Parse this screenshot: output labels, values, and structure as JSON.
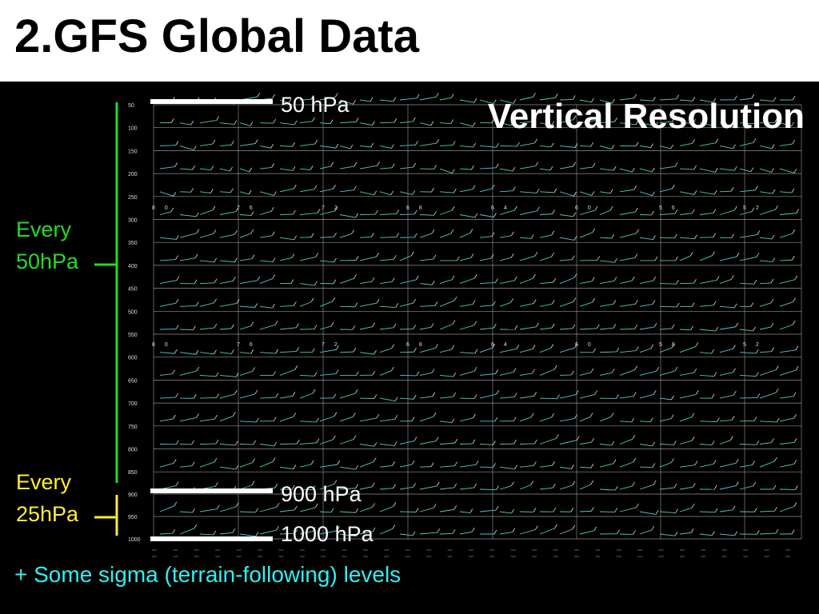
{
  "slide": {
    "title": "2.GFS Global Data",
    "subtitle": "Vertical Resolution",
    "footer_note": "+ Some sigma (terrain-following) levels"
  },
  "pressure_axis": {
    "tick_labels": [
      "50",
      "100",
      "150",
      "200",
      "250",
      "300",
      "350",
      "400",
      "450",
      "500",
      "550",
      "600",
      "650",
      "700",
      "750",
      "800",
      "850",
      "900",
      "950",
      "1000"
    ]
  },
  "panel_top_labels": [
    "80",
    "76",
    "72",
    "68",
    "64",
    "60",
    "56",
    "52"
  ],
  "callouts": {
    "top_level": "50 hPa",
    "mid_level": "900 hPa",
    "bottom_level": "1000 hPa"
  },
  "brackets": {
    "upper": {
      "line1": "Every",
      "line2": "50hPa",
      "color": "#22dd22"
    },
    "lower": {
      "line1": "Every",
      "line2": "25hPa",
      "color": "#ffee33"
    }
  },
  "colors": {
    "background": "#000000",
    "header_bg": "#ffffff",
    "title": "#000000",
    "subtitle": "#ffffff",
    "footer": "#33eeee",
    "grid": "#bfbfbf",
    "barb": "#4fc9c9",
    "marker": "#ffffff"
  }
}
